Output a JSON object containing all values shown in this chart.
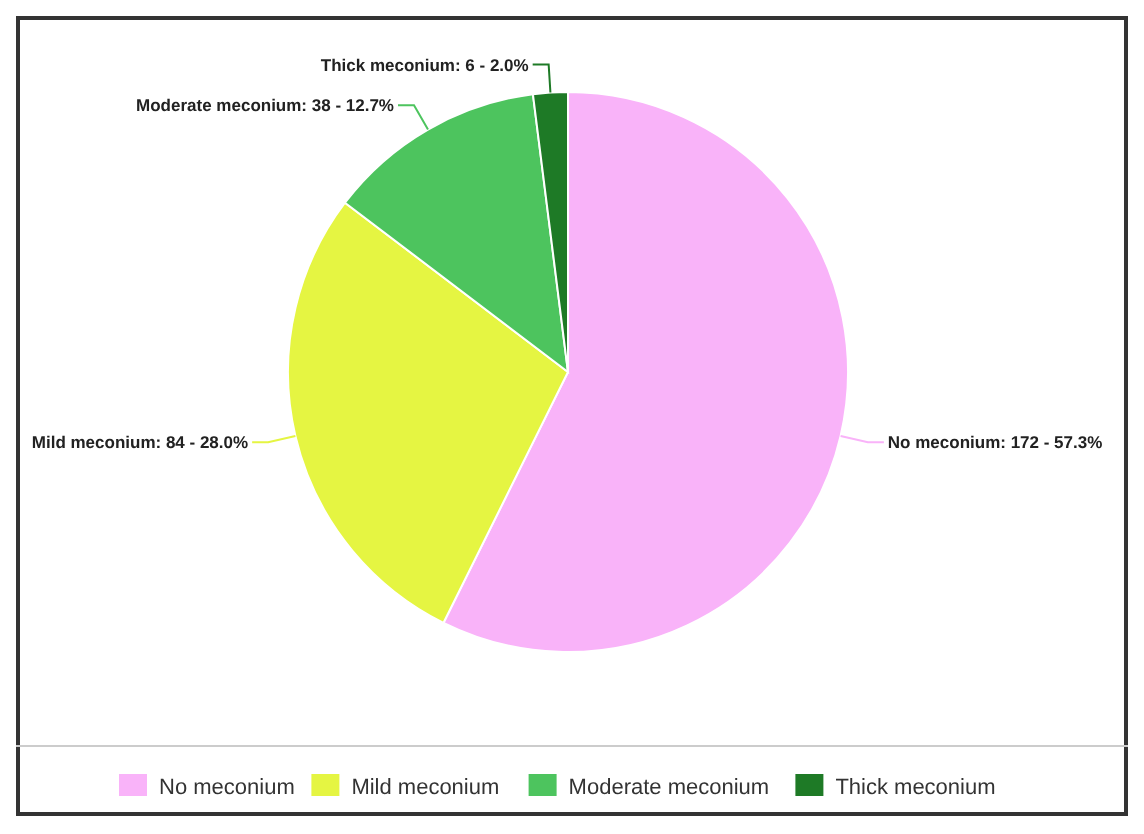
{
  "chart_data": {
    "type": "pie",
    "categories": [
      "No meconium",
      "Mild meconium",
      "Moderate meconium",
      "Thick meconium"
    ],
    "values": [
      172,
      84,
      38,
      6
    ],
    "colors": [
      "#f9b3f9",
      "#e5f542",
      "#4dc45e",
      "#1e7a26"
    ],
    "value_labels": [
      "No meconium: 172 - 57.3%",
      "Mild meconium: 84 - 28.0%",
      "Moderate meconium: 38 - 12.7%",
      "Thick meconium: 6 - 2.0%"
    ],
    "legend": "bottom"
  }
}
